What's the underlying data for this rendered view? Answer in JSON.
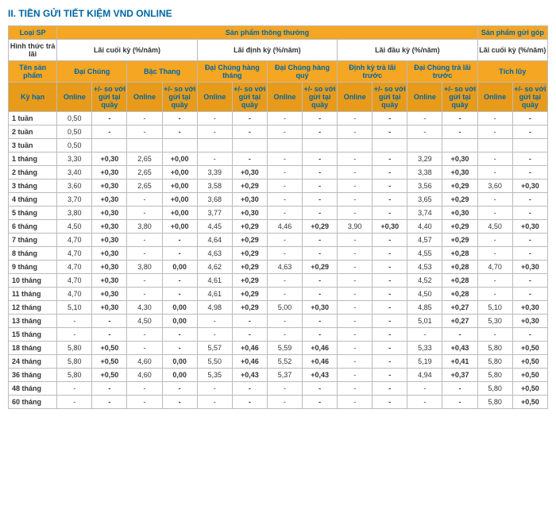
{
  "title": "II. TIỀN GỬI TIẾT KIỆM VND ONLINE",
  "headers": {
    "loai_sp": "Loại SP",
    "sp_thuong": "Sản phẩm thông thường",
    "sp_gop": "Sản phẩm gửi góp",
    "hinh_thuc": "Hình thức trả lãi",
    "lai_cuoi_ky": "Lãi cuối kỳ (%/năm)",
    "lai_dinh_ky": "Lãi định kỳ (%/năm)",
    "lai_dau_ky": "Lãi đầu kỳ (%/năm)",
    "lai_cuoi_ky2": "Lãi cuối kỳ (%/năm)",
    "ten_sp": "Tên sản phẩm",
    "dai_chung": "Đại Chúng",
    "bac_thang": "Bậc Thang",
    "dc_hang_thang": "Đại Chúng hàng tháng",
    "dc_hang_quy": "Đại Chúng hàng quý",
    "dinh_ky_tra": "Định kỳ trả lãi trước",
    "dc_tra_truoc": "Đại Chúng trả lãi trước",
    "tich_luy": "Tích lũy",
    "ky_han": "Kỳ hạn",
    "online": "Online",
    "delta": "+/- so với gửi tại quầy"
  },
  "colors": {
    "title": "#0066a4",
    "header_bg": "#f5a623",
    "header_bg_dark": "#e89b1a",
    "header_text": "#0066a4",
    "border": "#bbbbbb"
  },
  "rows": [
    {
      "label": "1 tuần",
      "v": [
        "0,50",
        "-",
        "-",
        "-",
        "-",
        "-",
        "-",
        "-",
        "-",
        "-",
        "-",
        "-",
        "-",
        "-"
      ]
    },
    {
      "label": "2 tuần",
      "v": [
        "0,50",
        "-",
        "-",
        "-",
        "-",
        "-",
        "-",
        "-",
        "-",
        "-",
        "-",
        "-",
        "-",
        "-"
      ]
    },
    {
      "label": "3 tuần",
      "v": [
        "0,50",
        "",
        "",
        "",
        "",
        "",
        "",
        "",
        "",
        "",
        "",
        "",
        "",
        ""
      ]
    },
    {
      "label": "1 tháng",
      "v": [
        "3,30",
        "+0,30",
        "2,65",
        "+0,00",
        "-",
        "-",
        "-",
        "-",
        "-",
        "-",
        "3,29",
        "+0,30",
        "-",
        "-"
      ]
    },
    {
      "label": "2 tháng",
      "v": [
        "3,40",
        "+0,30",
        "2,65",
        "+0,00",
        "3,39",
        "+0,30",
        "-",
        "-",
        "-",
        "-",
        "3,38",
        "+0,30",
        "-",
        "-"
      ]
    },
    {
      "label": "3 tháng",
      "v": [
        "3,60",
        "+0,30",
        "2,65",
        "+0,00",
        "3,58",
        "+0,29",
        "-",
        "-",
        "-",
        "-",
        "3,56",
        "+0,29",
        "3,60",
        "+0,30"
      ]
    },
    {
      "label": "4 tháng",
      "v": [
        "3,70",
        "+0,30",
        "-",
        "+0,00",
        "3,68",
        "+0,30",
        "-",
        "-",
        "-",
        "-",
        "3,65",
        "+0,29",
        "-",
        "-"
      ]
    },
    {
      "label": "5 tháng",
      "v": [
        "3,80",
        "+0,30",
        "-",
        "+0,00",
        "3,77",
        "+0,30",
        "-",
        "-",
        "-",
        "-",
        "3,74",
        "+0,30",
        "-",
        "-"
      ]
    },
    {
      "label": "6 tháng",
      "v": [
        "4,50",
        "+0,30",
        "3,80",
        "+0,00",
        "4,45",
        "+0,29",
        "4,46",
        "+0,29",
        "3,90",
        "+0,30",
        "4,40",
        "+0,29",
        "4,50",
        "+0,30"
      ]
    },
    {
      "label": "7 tháng",
      "v": [
        "4,70",
        "+0,30",
        "-",
        "-",
        "4,64",
        "+0,29",
        "-",
        "-",
        "-",
        "-",
        "4,57",
        "+0,29",
        "-",
        "-"
      ]
    },
    {
      "label": "8 tháng",
      "v": [
        "4,70",
        "+0,30",
        "-",
        "-",
        "4,63",
        "+0,29",
        "-",
        "-",
        "-",
        "-",
        "4,55",
        "+0,28",
        "-",
        "-"
      ]
    },
    {
      "label": "9 tháng",
      "v": [
        "4,70",
        "+0,30",
        "3,80",
        "0,00",
        "4,62",
        "+0,29",
        "4,63",
        "+0,29",
        "-",
        "-",
        "4,53",
        "+0,28",
        "4,70",
        "+0,30"
      ]
    },
    {
      "label": "10 tháng",
      "v": [
        "4,70",
        "+0,30",
        "-",
        "-",
        "4,61",
        "+0,29",
        "-",
        "-",
        "-",
        "-",
        "4,52",
        "+0,28",
        "-",
        "-"
      ]
    },
    {
      "label": "11 tháng",
      "v": [
        "4,70",
        "+0,30",
        "-",
        "-",
        "4,61",
        "+0,29",
        "-",
        "-",
        "-",
        "-",
        "4,50",
        "+0,28",
        "-",
        "-"
      ]
    },
    {
      "label": "12 tháng",
      "v": [
        "5,10",
        "+0,30",
        "4,30",
        "0,00",
        "4,98",
        "+0,29",
        "5,00",
        "+0,30",
        "-",
        "-",
        "4,85",
        "+0,27",
        "5,10",
        "+0,30"
      ]
    },
    {
      "label": "13 tháng",
      "v": [
        "-",
        "-",
        "4,50",
        "0,00",
        "-",
        "-",
        "-",
        "-",
        "-",
        "-",
        "5,01",
        "+0,27",
        "5,30",
        "+0,30"
      ]
    },
    {
      "label": "15 tháng",
      "v": [
        "-",
        "-",
        "-",
        "-",
        "-",
        "-",
        "-",
        "-",
        "-",
        "-",
        "-",
        "-",
        "-",
        "-"
      ]
    },
    {
      "label": "18 tháng",
      "v": [
        "5,80",
        "+0,50",
        "-",
        "-",
        "5,57",
        "+0,46",
        "5,59",
        "+0,46",
        "-",
        "-",
        "5,33",
        "+0,43",
        "5,80",
        "+0,50"
      ]
    },
    {
      "label": "24 tháng",
      "v": [
        "5,80",
        "+0,50",
        "4,60",
        "0,00",
        "5,50",
        "+0,46",
        "5,52",
        "+0,46",
        "-",
        "-",
        "5,19",
        "+0,41",
        "5,80",
        "+0,50"
      ]
    },
    {
      "label": "36 tháng",
      "v": [
        "5,80",
        "+0,50",
        "4,60",
        "0,00",
        "5,35",
        "+0,43",
        "5,37",
        "+0,43",
        "-",
        "-",
        "4,94",
        "+0,37",
        "5,80",
        "+0,50"
      ]
    },
    {
      "label": "48 tháng",
      "v": [
        "-",
        "-",
        "-",
        "-",
        "-",
        "-",
        "-",
        "-",
        "-",
        "-",
        "-",
        "-",
        "5,80",
        "+0,50"
      ]
    },
    {
      "label": "60 tháng",
      "v": [
        "-",
        "-",
        "-",
        "-",
        "-",
        "-",
        "-",
        "-",
        "-",
        "-",
        "-",
        "-",
        "5,80",
        "+0,50"
      ]
    }
  ]
}
